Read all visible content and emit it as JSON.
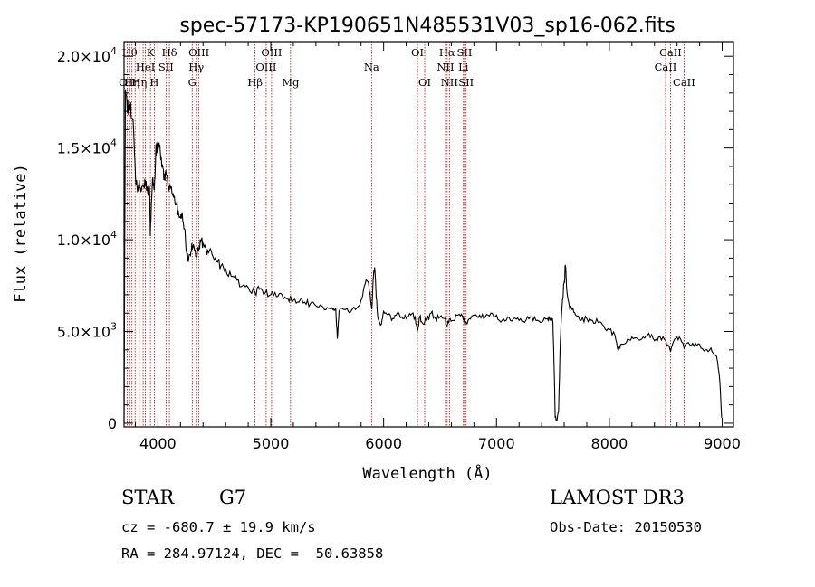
{
  "chart_data": {
    "type": "line",
    "title": "spec-57173-KP190651N485531V03_sp16-062.fits",
    "xlabel": "Wavelength (Å)",
    "ylabel": "Flux (relative)",
    "xlim": [
      3700,
      9100
    ],
    "ylim": [
      -200,
      20800
    ],
    "x_ticks": [
      {
        "value": 4000,
        "label": "4000"
      },
      {
        "value": 5000,
        "label": "5000"
      },
      {
        "value": 6000,
        "label": "6000"
      },
      {
        "value": 7000,
        "label": "7000"
      },
      {
        "value": 8000,
        "label": "8000"
      },
      {
        "value": 9000,
        "label": "9000"
      }
    ],
    "y_ticks": [
      {
        "value": 0,
        "mant": "0",
        "exp": ""
      },
      {
        "value": 5000,
        "mant": "5.0×10",
        "exp": "3"
      },
      {
        "value": 10000,
        "mant": "1.0×10",
        "exp": "4"
      },
      {
        "value": 15000,
        "mant": "1.5×10",
        "exp": "4"
      },
      {
        "value": 20000,
        "mant": "2.0×10",
        "exp": "4"
      }
    ],
    "series": [
      {
        "name": "spectrum",
        "points": [
          [
            3700,
            0
          ],
          [
            3712,
            18200
          ],
          [
            3725,
            17600
          ],
          [
            3740,
            16800
          ],
          [
            3752,
            17400
          ],
          [
            3765,
            16600
          ],
          [
            3785,
            15900
          ],
          [
            3800,
            13600
          ],
          [
            3815,
            12900
          ],
          [
            3830,
            13000
          ],
          [
            3850,
            12600
          ],
          [
            3865,
            13000
          ],
          [
            3880,
            12800
          ],
          [
            3895,
            13200
          ],
          [
            3910,
            12500
          ],
          [
            3925,
            12900
          ],
          [
            3933,
            10200
          ],
          [
            3942,
            12000
          ],
          [
            3955,
            13400
          ],
          [
            3968,
            12700
          ],
          [
            3980,
            14700
          ],
          [
            3990,
            15300
          ],
          [
            4000,
            14800
          ],
          [
            4010,
            15300
          ],
          [
            4025,
            14400
          ],
          [
            4045,
            13900
          ],
          [
            4060,
            13400
          ],
          [
            4070,
            13800
          ],
          [
            4085,
            13300
          ],
          [
            4102,
            12700
          ],
          [
            4120,
            12900
          ],
          [
            4140,
            12300
          ],
          [
            4160,
            11900
          ],
          [
            4180,
            11600
          ],
          [
            4200,
            11200
          ],
          [
            4215,
            11500
          ],
          [
            4235,
            10600
          ],
          [
            4255,
            9300
          ],
          [
            4270,
            8800
          ],
          [
            4285,
            9200
          ],
          [
            4300,
            9800
          ],
          [
            4320,
            9600
          ],
          [
            4340,
            9100
          ],
          [
            4360,
            9400
          ],
          [
            4380,
            9900
          ],
          [
            4400,
            9800
          ],
          [
            4420,
            9600
          ],
          [
            4450,
            9300
          ],
          [
            4480,
            9200
          ],
          [
            4520,
            8800
          ],
          [
            4560,
            8600
          ],
          [
            4600,
            8400
          ],
          [
            4650,
            8000
          ],
          [
            4700,
            7800
          ],
          [
            4750,
            7500
          ],
          [
            4800,
            7400
          ],
          [
            4861,
            7100
          ],
          [
            4900,
            7300
          ],
          [
            4950,
            7100
          ],
          [
            5000,
            7000
          ],
          [
            5050,
            6900
          ],
          [
            5100,
            7000
          ],
          [
            5150,
            6800
          ],
          [
            5200,
            6700
          ],
          [
            5250,
            6600
          ],
          [
            5300,
            6600
          ],
          [
            5350,
            6500
          ],
          [
            5400,
            6400
          ],
          [
            5450,
            6400
          ],
          [
            5500,
            6300
          ],
          [
            5550,
            6200
          ],
          [
            5575,
            6300
          ],
          [
            5590,
            4600
          ],
          [
            5605,
            6100
          ],
          [
            5650,
            6200
          ],
          [
            5700,
            6000
          ],
          [
            5750,
            6200
          ],
          [
            5800,
            6700
          ],
          [
            5830,
            7500
          ],
          [
            5860,
            7700
          ],
          [
            5880,
            7100
          ],
          [
            5895,
            6200
          ],
          [
            5910,
            8000
          ],
          [
            5920,
            8500
          ],
          [
            5935,
            6800
          ],
          [
            5950,
            5700
          ],
          [
            5980,
            5400
          ],
          [
            6000,
            6100
          ],
          [
            6040,
            5900
          ],
          [
            6080,
            5700
          ],
          [
            6120,
            6000
          ],
          [
            6160,
            5800
          ],
          [
            6200,
            5700
          ],
          [
            6240,
            5900
          ],
          [
            6280,
            5800
          ],
          [
            6300,
            5000
          ],
          [
            6320,
            5800
          ],
          [
            6340,
            5500
          ],
          [
            6380,
            5600
          ],
          [
            6420,
            6000
          ],
          [
            6460,
            5700
          ],
          [
            6500,
            5800
          ],
          [
            6540,
            5700
          ],
          [
            6563,
            5300
          ],
          [
            6590,
            5700
          ],
          [
            6620,
            5600
          ],
          [
            6660,
            5900
          ],
          [
            6700,
            5800
          ],
          [
            6720,
            5400
          ],
          [
            6760,
            5700
          ],
          [
            6800,
            5900
          ],
          [
            6850,
            5900
          ],
          [
            6900,
            5800
          ],
          [
            6950,
            6000
          ],
          [
            7000,
            5900
          ],
          [
            7050,
            5600
          ],
          [
            7100,
            5800
          ],
          [
            7150,
            5700
          ],
          [
            7200,
            5600
          ],
          [
            7250,
            5500
          ],
          [
            7300,
            5800
          ],
          [
            7350,
            5600
          ],
          [
            7400,
            5500
          ],
          [
            7450,
            5700
          ],
          [
            7480,
            5700
          ],
          [
            7500,
            5500
          ],
          [
            7510,
            3200
          ],
          [
            7520,
            300
          ],
          [
            7535,
            100
          ],
          [
            7550,
            600
          ],
          [
            7565,
            4400
          ],
          [
            7580,
            6300
          ],
          [
            7600,
            7700
          ],
          [
            7610,
            8600
          ],
          [
            7625,
            7100
          ],
          [
            7645,
            6400
          ],
          [
            7670,
            6200
          ],
          [
            7700,
            5900
          ],
          [
            7750,
            5600
          ],
          [
            7800,
            5700
          ],
          [
            7850,
            5600
          ],
          [
            7900,
            5500
          ],
          [
            7950,
            5300
          ],
          [
            8000,
            5100
          ],
          [
            8050,
            4800
          ],
          [
            8080,
            4000
          ],
          [
            8100,
            4300
          ],
          [
            8150,
            4400
          ],
          [
            8200,
            4700
          ],
          [
            8250,
            4600
          ],
          [
            8300,
            4700
          ],
          [
            8350,
            4900
          ],
          [
            8400,
            4500
          ],
          [
            8450,
            4700
          ],
          [
            8500,
            4500
          ],
          [
            8542,
            3900
          ],
          [
            8580,
            4600
          ],
          [
            8620,
            4700
          ],
          [
            8662,
            4100
          ],
          [
            8700,
            4400
          ],
          [
            8750,
            4200
          ],
          [
            8800,
            4300
          ],
          [
            8850,
            4000
          ],
          [
            8900,
            4100
          ],
          [
            8940,
            3700
          ],
          [
            8960,
            3300
          ],
          [
            8980,
            2200
          ],
          [
            8995,
            300
          ]
        ]
      }
    ],
    "spectral_lines": [
      {
        "wl": 3727,
        "label": "OII",
        "row": 3
      },
      {
        "wl": 3750,
        "label": "Hθ",
        "row": 1
      },
      {
        "wl": 3770,
        "label": "Hη",
        "row": 3
      },
      {
        "wl": 3798,
        "label": "",
        "row": 0
      },
      {
        "wl": 3835,
        "label": "Hη",
        "row": 3
      },
      {
        "wl": 3869,
        "label": "",
        "row": 0
      },
      {
        "wl": 3889,
        "label": "HeI",
        "row": 2
      },
      {
        "wl": 3934,
        "label": "K",
        "row": 1
      },
      {
        "wl": 3968,
        "label": "H",
        "row": 3
      },
      {
        "wl": 4072,
        "label": "SII",
        "row": 2
      },
      {
        "wl": 4102,
        "label": "Hδ",
        "row": 1
      },
      {
        "wl": 4304,
        "label": "G",
        "row": 3
      },
      {
        "wl": 4340,
        "label": "Hγ",
        "row": 2
      },
      {
        "wl": 4363,
        "label": "OIII",
        "row": 1
      },
      {
        "wl": 4861,
        "label": "Hβ",
        "row": 3
      },
      {
        "wl": 4959,
        "label": "OIII",
        "row": 2
      },
      {
        "wl": 5007,
        "label": "OIII",
        "row": 1
      },
      {
        "wl": 5175,
        "label": "Mg",
        "row": 3
      },
      {
        "wl": 5893,
        "label": "Na",
        "row": 2
      },
      {
        "wl": 6300,
        "label": "OI",
        "row": 1
      },
      {
        "wl": 6364,
        "label": "OI",
        "row": 3
      },
      {
        "wl": 6548,
        "label": "NII",
        "row": 2
      },
      {
        "wl": 6563,
        "label": "Hα",
        "row": 1
      },
      {
        "wl": 6583,
        "label": "NII",
        "row": 3
      },
      {
        "wl": 6707,
        "label": "Li",
        "row": 2
      },
      {
        "wl": 6717,
        "label": "SII",
        "row": 1
      },
      {
        "wl": 6731,
        "label": "SII",
        "row": 3
      },
      {
        "wl": 8498,
        "label": "CaII",
        "row": 2
      },
      {
        "wl": 8542,
        "label": "CaII",
        "row": 1
      },
      {
        "wl": 8662,
        "label": "CaII",
        "row": 3
      }
    ]
  },
  "info": {
    "object_class": "STAR",
    "subclass": "G7",
    "survey": "LAMOST DR3",
    "cz": "cz = -680.7 ± 19.9 km/s",
    "coords": "RA = 284.97124, DEC =  50.63858",
    "obs_date": "Obs-Date: 20150530"
  }
}
